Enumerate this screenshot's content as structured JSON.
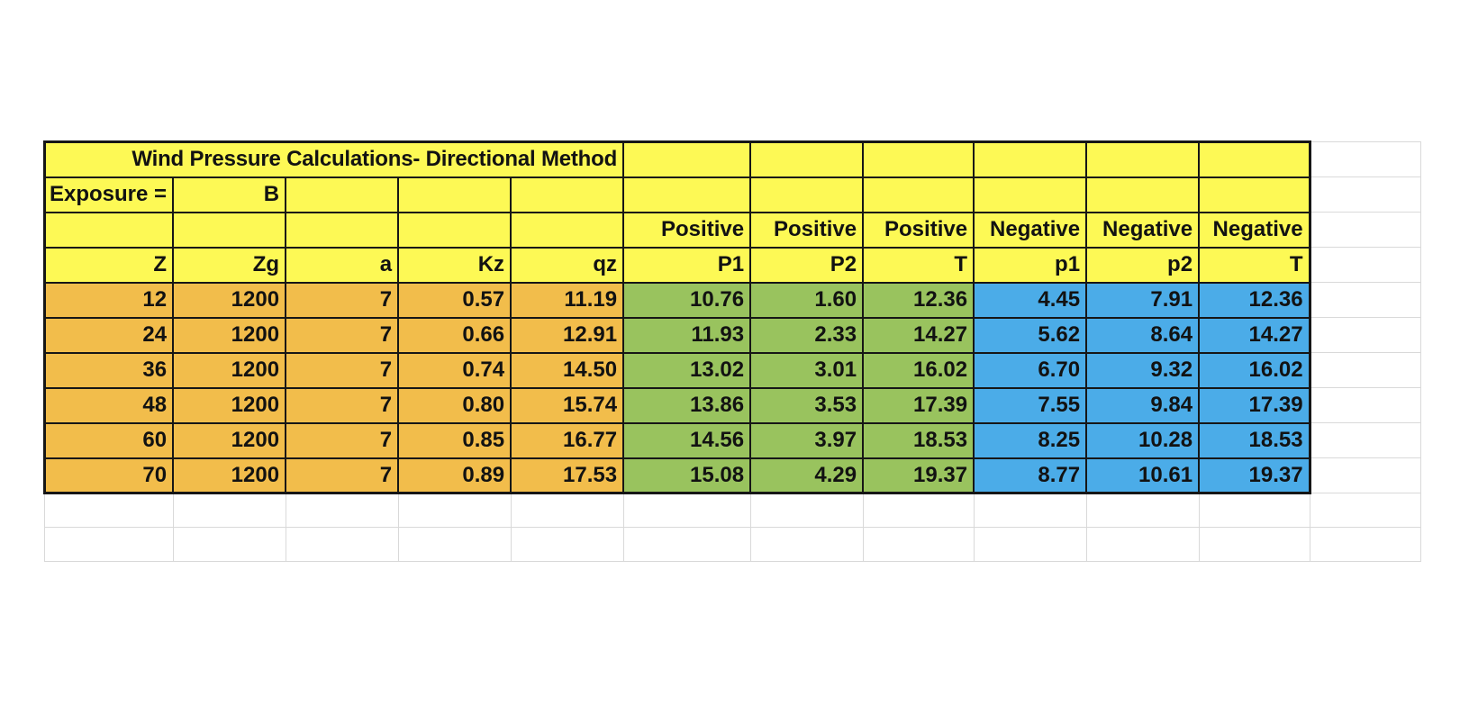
{
  "sheet": {
    "title": "Wind Pressure Calculations- Directional Method",
    "exposure_label": "Exposure =",
    "exposure_value": "B",
    "group_headers": [
      "Positive",
      "Positive",
      "Positive",
      "Negative",
      "Negative",
      "Negative"
    ],
    "column_headers": [
      "Z",
      "Zg",
      "a",
      "Kz",
      "qz",
      "P1",
      "P2",
      "T",
      "p1",
      "p2",
      "T"
    ],
    "data_rows": [
      [
        "12",
        "1200",
        "7",
        "0.57",
        "11.19",
        "10.76",
        "1.60",
        "12.36",
        "4.45",
        "7.91",
        "12.36"
      ],
      [
        "24",
        "1200",
        "7",
        "0.66",
        "12.91",
        "11.93",
        "2.33",
        "14.27",
        "5.62",
        "8.64",
        "14.27"
      ],
      [
        "36",
        "1200",
        "7",
        "0.74",
        "14.50",
        "13.02",
        "3.01",
        "16.02",
        "6.70",
        "9.32",
        "16.02"
      ],
      [
        "48",
        "1200",
        "7",
        "0.80",
        "15.74",
        "13.86",
        "3.53",
        "17.39",
        "7.55",
        "9.84",
        "17.39"
      ],
      [
        "60",
        "1200",
        "7",
        "0.85",
        "16.77",
        "14.56",
        "3.97",
        "18.53",
        "8.25",
        "10.28",
        "18.53"
      ],
      [
        "70",
        "1200",
        "7",
        "0.89",
        "17.53",
        "15.08",
        "4.29",
        "19.37",
        "8.77",
        "10.61",
        "19.37"
      ]
    ],
    "empty_rows_below": 2
  },
  "colors": {
    "header_fill": "#FDF955",
    "input_fill": "#F2BD4B",
    "positive_fill": "#99C35E",
    "negative_fill": "#4BACE8",
    "cell_border": "#161616",
    "gridline": "#D9D9D9"
  }
}
